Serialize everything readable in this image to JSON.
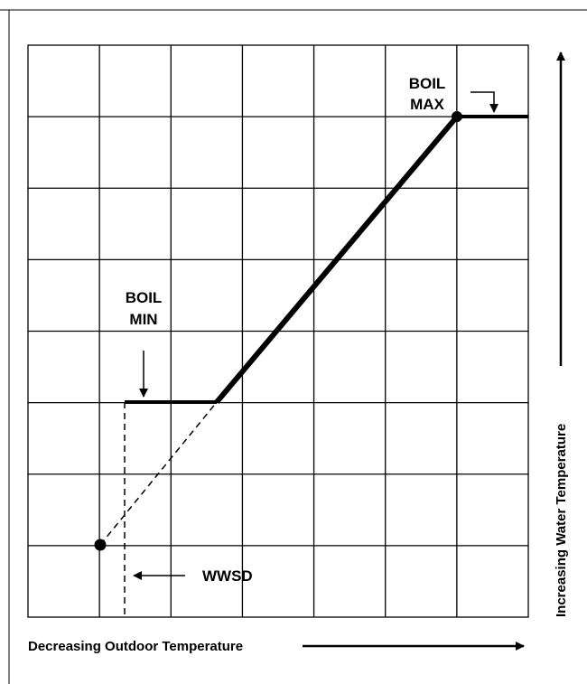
{
  "labels": {
    "boil_max_line1": "BOIL",
    "boil_max_line2": "MAX",
    "boil_min_line1": "BOIL",
    "boil_min_line2": "MIN",
    "wwsd": "WWSD",
    "x_axis": "Decreasing Outdoor Temperature",
    "y_axis": "Increasing Water Temperature"
  },
  "grid": {
    "columns": 7,
    "rows": 8,
    "line_color": "#000000"
  },
  "colors": {
    "ink": "#000000",
    "background": "#ffffff"
  }
}
